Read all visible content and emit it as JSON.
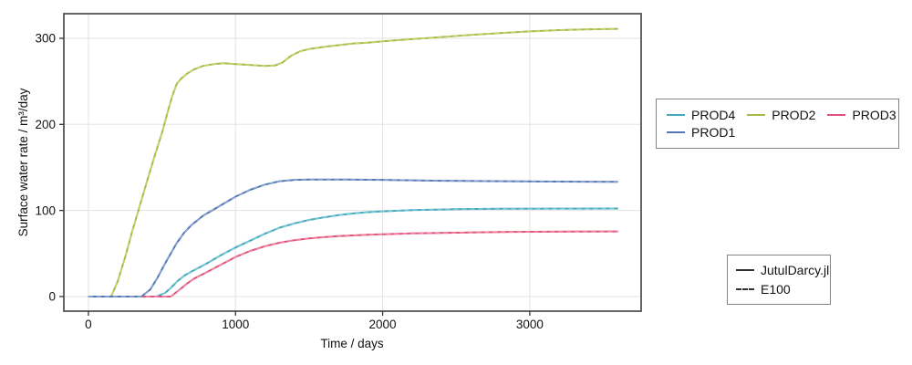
{
  "chart_data": {
    "type": "line",
    "title": "",
    "xlabel": "Time / days",
    "ylabel": "Surface water rate / m³/day",
    "xlim": [
      -167,
      3757
    ],
    "ylim": [
      -17,
      328.6
    ],
    "x_ticks": [
      0,
      1000,
      2000,
      3000
    ],
    "x_tick_labels": [
      "0",
      "1000",
      "2000",
      "3000"
    ],
    "y_ticks": [
      0,
      100,
      200,
      300
    ],
    "y_tick_labels": [
      "0",
      "100",
      "200",
      "300"
    ],
    "grid": true,
    "legend_position": "right-outside",
    "series": [
      {
        "name": "PROD2",
        "color": "#a3bb47",
        "dash_color": "#c3d472",
        "points": [
          [
            0,
            0
          ],
          [
            100,
            0
          ],
          [
            155,
            0
          ],
          [
            200,
            18
          ],
          [
            250,
            46
          ],
          [
            300,
            77
          ],
          [
            340,
            100
          ],
          [
            400,
            135
          ],
          [
            450,
            163
          ],
          [
            500,
            190
          ],
          [
            540,
            215
          ],
          [
            570,
            233
          ],
          [
            600,
            247
          ],
          [
            630,
            253
          ],
          [
            670,
            259
          ],
          [
            720,
            264
          ],
          [
            780,
            268
          ],
          [
            850,
            270
          ],
          [
            920,
            271
          ],
          [
            1000,
            270
          ],
          [
            1100,
            269
          ],
          [
            1200,
            268
          ],
          [
            1270,
            268.5
          ],
          [
            1320,
            272
          ],
          [
            1380,
            280
          ],
          [
            1440,
            285
          ],
          [
            1500,
            287.5
          ],
          [
            1600,
            290
          ],
          [
            1700,
            292
          ],
          [
            1800,
            294
          ],
          [
            1900,
            295
          ],
          [
            2000,
            296.5
          ],
          [
            2200,
            299
          ],
          [
            2400,
            301.5
          ],
          [
            2600,
            304
          ],
          [
            2800,
            306
          ],
          [
            3000,
            308
          ],
          [
            3200,
            309.5
          ],
          [
            3400,
            310.5
          ],
          [
            3600,
            311
          ]
        ]
      },
      {
        "name": "PROD4",
        "color": "#41a9bd",
        "dash_color": "#7cc6d4",
        "points": [
          [
            0,
            0
          ],
          [
            300,
            0
          ],
          [
            460,
            0
          ],
          [
            520,
            4
          ],
          [
            560,
            10
          ],
          [
            600,
            17
          ],
          [
            650,
            24
          ],
          [
            700,
            29
          ],
          [
            800,
            38
          ],
          [
            900,
            48
          ],
          [
            1000,
            57
          ],
          [
            1100,
            65
          ],
          [
            1200,
            73
          ],
          [
            1300,
            80
          ],
          [
            1400,
            85
          ],
          [
            1500,
            89
          ],
          [
            1600,
            92
          ],
          [
            1700,
            94.5
          ],
          [
            1800,
            96.5
          ],
          [
            1900,
            98
          ],
          [
            2000,
            99
          ],
          [
            2200,
            100.5
          ],
          [
            2500,
            101.5
          ],
          [
            2800,
            102
          ],
          [
            3200,
            102.2
          ],
          [
            3600,
            102.3
          ]
        ]
      },
      {
        "name": "PROD3",
        "color": "#e0517b",
        "dash_color": "#ee86a2",
        "points": [
          [
            0,
            0
          ],
          [
            300,
            0
          ],
          [
            560,
            0
          ],
          [
            620,
            8
          ],
          [
            670,
            15
          ],
          [
            720,
            21
          ],
          [
            800,
            28
          ],
          [
            900,
            37
          ],
          [
            1000,
            46
          ],
          [
            1100,
            53
          ],
          [
            1200,
            58.5
          ],
          [
            1300,
            62.5
          ],
          [
            1400,
            65.5
          ],
          [
            1500,
            67.5
          ],
          [
            1600,
            69
          ],
          [
            1700,
            70.2
          ],
          [
            1800,
            71
          ],
          [
            1900,
            71.8
          ],
          [
            2000,
            72.4
          ],
          [
            2200,
            73.4
          ],
          [
            2400,
            74
          ],
          [
            2600,
            74.5
          ],
          [
            2800,
            74.9
          ],
          [
            3000,
            75.2
          ],
          [
            3300,
            75.5
          ],
          [
            3600,
            75.7
          ]
        ]
      },
      {
        "name": "PROD1",
        "color": "#5278b5",
        "dash_color": "#8aa2cf",
        "points": [
          [
            0,
            0
          ],
          [
            200,
            0
          ],
          [
            360,
            0
          ],
          [
            420,
            8
          ],
          [
            470,
            22
          ],
          [
            520,
            38
          ],
          [
            560,
            50
          ],
          [
            600,
            62
          ],
          [
            650,
            74
          ],
          [
            700,
            83
          ],
          [
            780,
            94
          ],
          [
            850,
            101
          ],
          [
            920,
            108
          ],
          [
            1000,
            116
          ],
          [
            1100,
            124
          ],
          [
            1200,
            130
          ],
          [
            1300,
            134
          ],
          [
            1400,
            135.5
          ],
          [
            1500,
            136
          ],
          [
            1700,
            136
          ],
          [
            2000,
            135.5
          ],
          [
            2400,
            134.5
          ],
          [
            2800,
            134
          ],
          [
            3200,
            133.5
          ],
          [
            3600,
            133.2
          ]
        ]
      }
    ]
  },
  "legends": {
    "wells": {
      "items": [
        {
          "label": "PROD4",
          "color": "#41a9bd"
        },
        {
          "label": "PROD2",
          "color": "#a3bb47"
        },
        {
          "label": "PROD3",
          "color": "#e0517b"
        },
        {
          "label": "PROD1",
          "color": "#5278b5"
        }
      ]
    },
    "styles": {
      "items": [
        {
          "label": "JutulDarcy.jl",
          "style": "solid",
          "color": "#303030"
        },
        {
          "label": "E100",
          "style": "dashed",
          "color": "#303030"
        }
      ]
    }
  },
  "colors": {
    "background": "#ffffff",
    "spine": "#4a4a4a",
    "grid": "#e3e3e3",
    "tick": "#333333",
    "legend_border": "#858585"
  }
}
